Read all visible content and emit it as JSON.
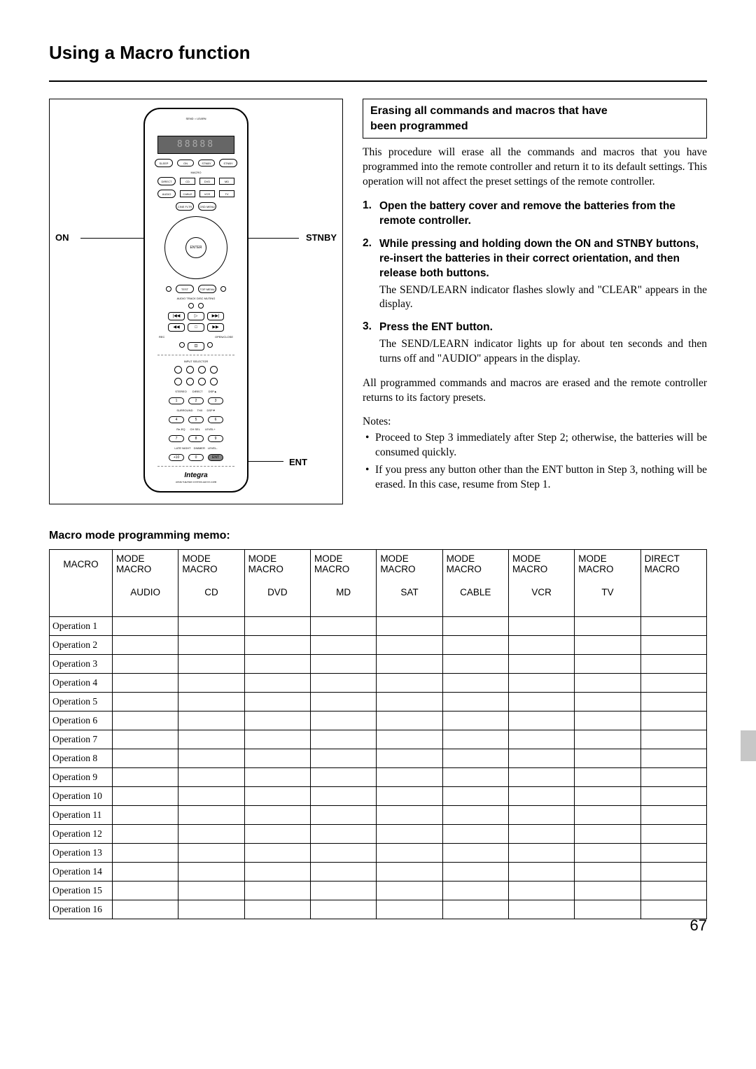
{
  "title": "Using a Macro function",
  "remote": {
    "label_on": "ON",
    "label_stnby": "STNBY",
    "label_ent": "ENT",
    "brand": "Integra",
    "subbrand": "HOME THEATER CONTROLLER RC-418M",
    "center_button": "ENTER",
    "mode_row1": [
      "CD",
      "DVD",
      "MD"
    ],
    "mode_row2": [
      "CABLE",
      "VCR",
      "TV"
    ],
    "grid_labels": [
      "STEREO",
      "DIRECT",
      "DSP▲",
      "1",
      "2",
      "3",
      "SURROUND",
      "THX",
      "DSP▼",
      "4",
      "5",
      "6",
      "Re-EQ",
      "CH SEL",
      "LEVEL+",
      "7",
      "8",
      "9",
      "LATE NIGHT",
      "DIMMER",
      "LEVEL-",
      "+10",
      "0",
      "ENT"
    ]
  },
  "box_title_1": "Erasing all commands and macros that have",
  "box_title_2": "been programmed",
  "intro_para": "This procedure will erase all the commands and macros that you have programmed into the remote controller and return it to its default settings. This operation will not affect the preset settings of the remote controller.",
  "steps": {
    "s1_head": "Open the battery cover and remove the batteries from the remote controller.",
    "s2_head": "While pressing and holding down the ON and STNBY buttons, re-insert the batteries in their correct orientation, and then release both buttons.",
    "s2_body": "The SEND/LEARN indicator flashes slowly and \"CLEAR\" appears in the display.",
    "s3_head": "Press the ENT button.",
    "s3_body": "The SEND/LEARN indicator lights up for about ten seconds and then turns off and \"AUDIO\" appears in the display."
  },
  "post_para": "All programmed commands and macros are erased and the remote controller returns to its factory presets.",
  "notes_head": "Notes:",
  "notes": [
    "Proceed to Step 3 immediately after Step 2; otherwise, the batteries will be consumed quickly.",
    "If you press any button other than the ENT button in Step 3, nothing will be erased. In this case, resume from Step 1."
  ],
  "memo_title": "Macro mode programming memo:",
  "table": {
    "col0_header": "MACRO",
    "hdr_line1": "MODE",
    "hdr_line2": "MACRO",
    "direct_line1": "DIRECT",
    "direct_line2": "MACRO",
    "sub_labels": [
      "AUDIO",
      "CD",
      "DVD",
      "MD",
      "SAT",
      "CABLE",
      "VCR",
      "TV",
      ""
    ],
    "rows": [
      "Operation 1",
      "Operation 2",
      "Operation 3",
      "Operation 4",
      "Operation 5",
      "Operation 6",
      "Operation 7",
      "Operation 8",
      "Operation 9",
      "Operation 10",
      "Operation 11",
      "Operation 12",
      "Operation 13",
      "Operation 14",
      "Operation 15",
      "Operation 16"
    ]
  },
  "page_number": "67",
  "colors": {
    "text": "#000000",
    "bg": "#ffffff",
    "tab": "#c7c7c7"
  }
}
